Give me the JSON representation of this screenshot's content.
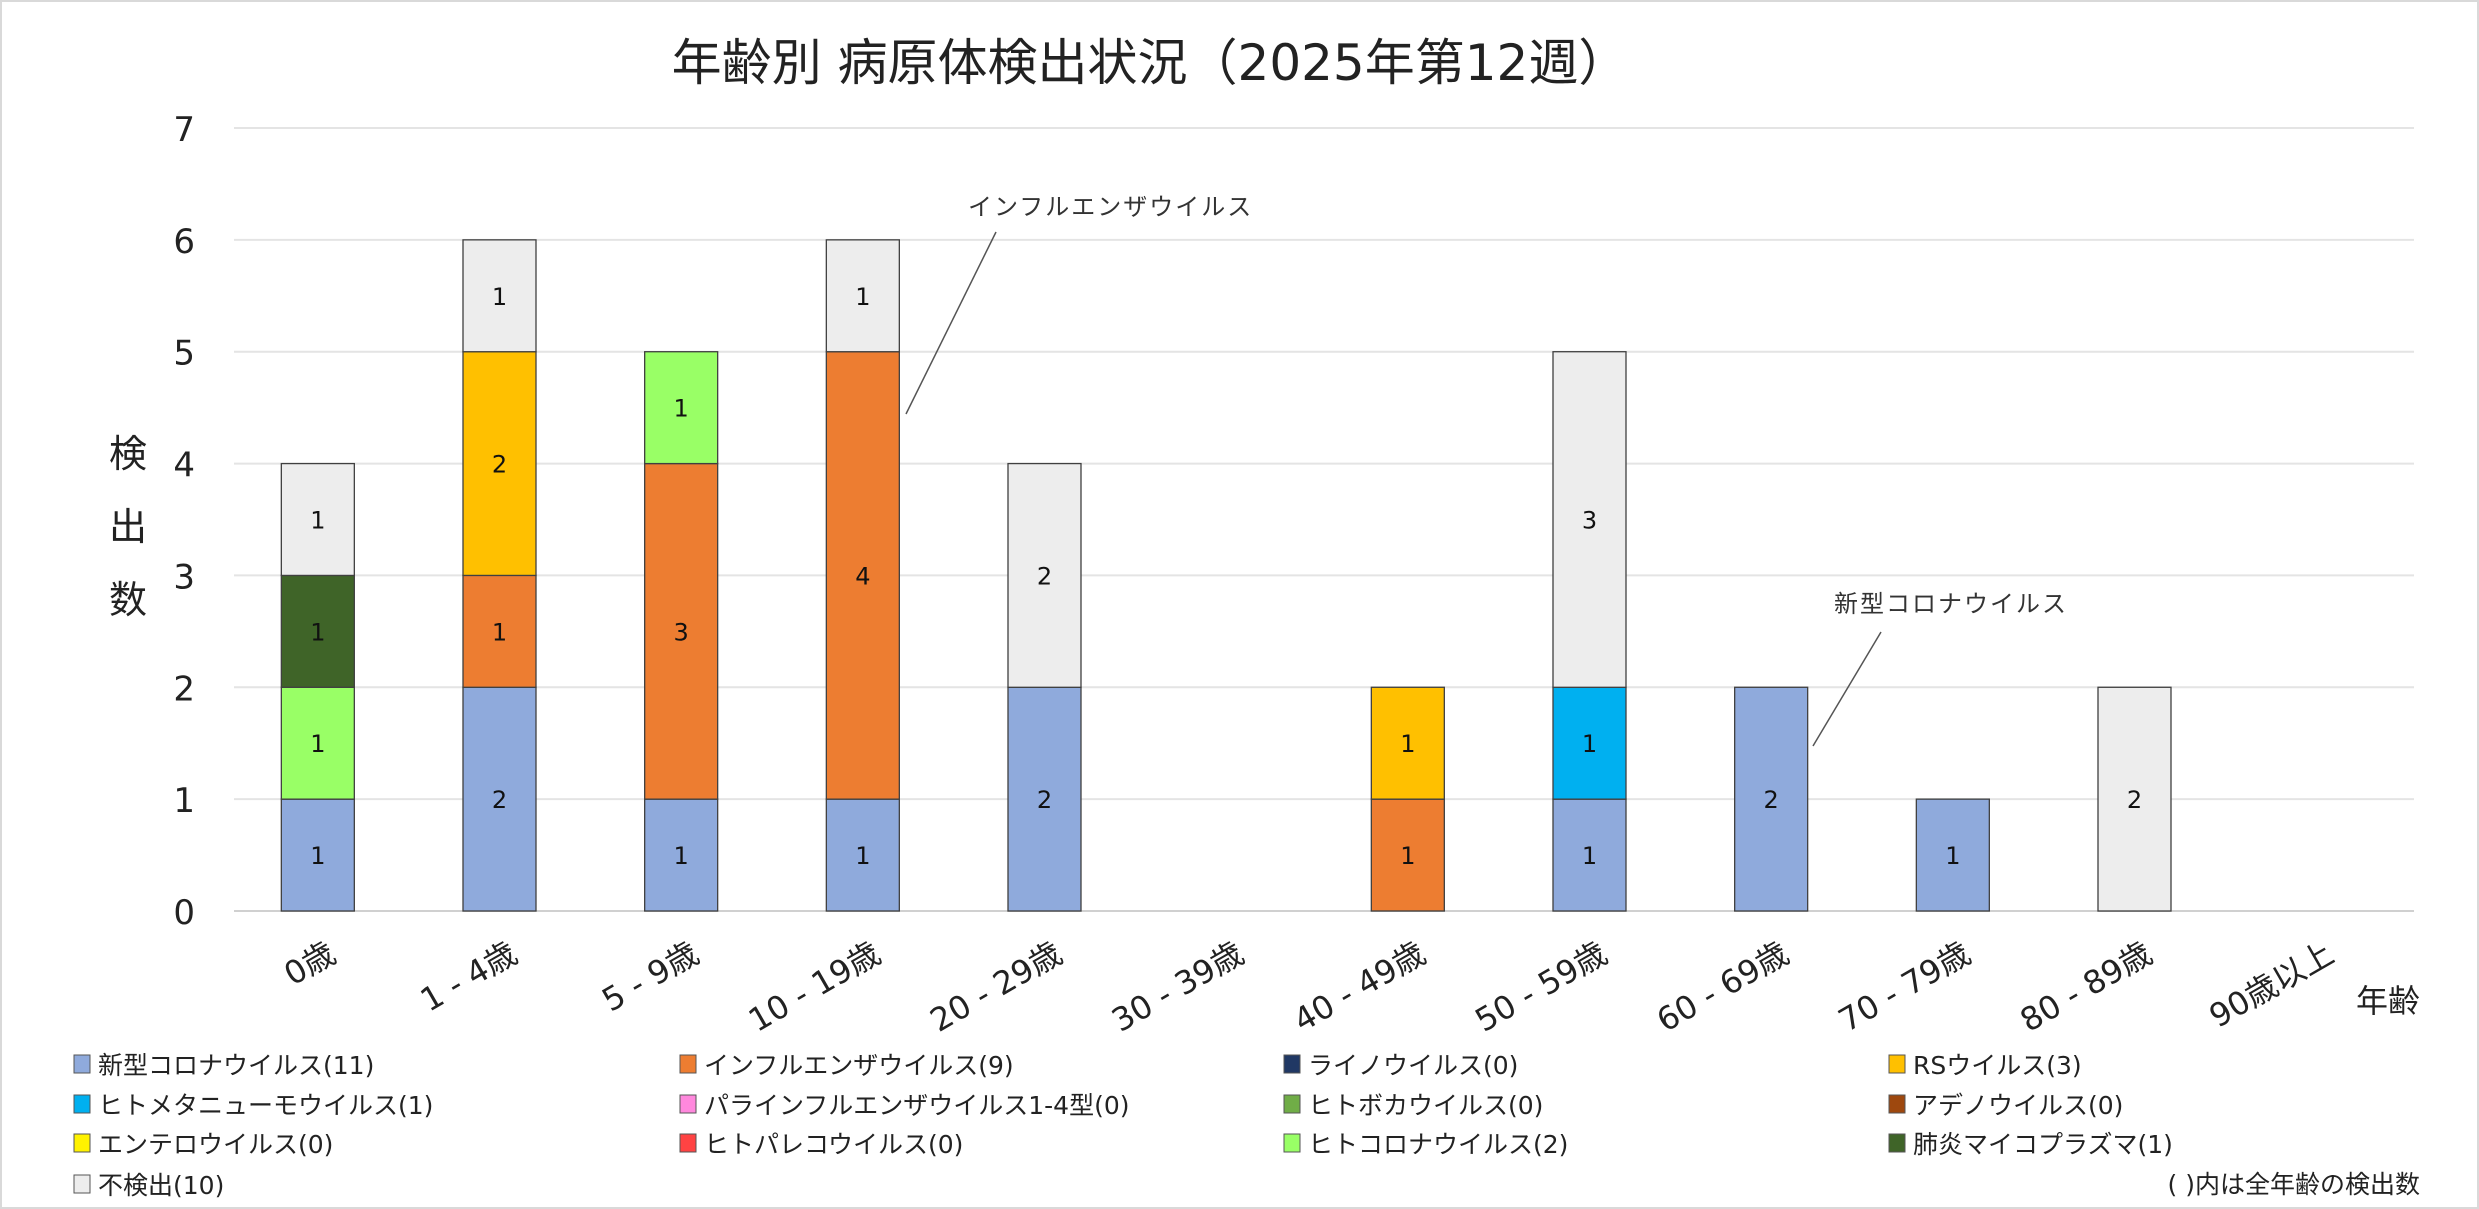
{
  "chart_data": {
    "type": "bar",
    "stacked": true,
    "title": "年齢別 病原体検出状況（2025年第12週）",
    "xlabel": "年齢",
    "ylabel": "検出数",
    "ylim": [
      0,
      7
    ],
    "yticks": [
      "0",
      "1",
      "2",
      "3",
      "4",
      "5",
      "6",
      "7"
    ],
    "grid": true,
    "legend_position": "bottom",
    "legend_note": "( )内は全年齢の検出数",
    "categories": [
      "0歳",
      "1 - 4歳",
      "5 - 9歳",
      "10 - 19歳",
      "20 - 29歳",
      "30 - 39歳",
      "40 - 49歳",
      "50 - 59歳",
      "60 - 69歳",
      "70 - 79歳",
      "80 - 89歳",
      "90歳以上"
    ],
    "series": [
      {
        "name": "新型コロナウイルス(11)",
        "color": "#8FAADC",
        "values": [
          1,
          2,
          1,
          1,
          2,
          0,
          0,
          1,
          2,
          1,
          0,
          0
        ]
      },
      {
        "name": "インフルエンザウイルス(9)",
        "color": "#ED7D31",
        "values": [
          0,
          1,
          3,
          4,
          0,
          0,
          1,
          0,
          0,
          0,
          0,
          0
        ]
      },
      {
        "name": "ライノウイルス(0)",
        "color": "#203864",
        "values": [
          0,
          0,
          0,
          0,
          0,
          0,
          0,
          0,
          0,
          0,
          0,
          0
        ]
      },
      {
        "name": "RSウイルス(3)",
        "color": "#FFC000",
        "values": [
          0,
          2,
          0,
          0,
          0,
          0,
          1,
          0,
          0,
          0,
          0,
          0
        ]
      },
      {
        "name": "ヒトメタニューモウイルス(1)",
        "color": "#00B0F0",
        "values": [
          0,
          0,
          0,
          0,
          0,
          0,
          0,
          1,
          0,
          0,
          0,
          0
        ]
      },
      {
        "name": "パラインフルエンザウイルス1-4型(0)",
        "color": "#FF88DD",
        "values": [
          0,
          0,
          0,
          0,
          0,
          0,
          0,
          0,
          0,
          0,
          0,
          0
        ]
      },
      {
        "name": "ヒトボカウイルス(0)",
        "color": "#70AD47",
        "values": [
          0,
          0,
          0,
          0,
          0,
          0,
          0,
          0,
          0,
          0,
          0,
          0
        ]
      },
      {
        "name": "アデノウイルス(0)",
        "color": "#9E480E",
        "values": [
          0,
          0,
          0,
          0,
          0,
          0,
          0,
          0,
          0,
          0,
          0,
          0
        ]
      },
      {
        "name": "エンテロウイルス(0)",
        "color": "#FFF200",
        "values": [
          0,
          0,
          0,
          0,
          0,
          0,
          0,
          0,
          0,
          0,
          0,
          0
        ]
      },
      {
        "name": "ヒトパレコウイルス(0)",
        "color": "#FF4343",
        "values": [
          0,
          0,
          0,
          0,
          0,
          0,
          0,
          0,
          0,
          0,
          0,
          0
        ]
      },
      {
        "name": "ヒトコロナウイルス(2)",
        "color": "#99FF66",
        "values": [
          1,
          0,
          1,
          0,
          0,
          0,
          0,
          0,
          0,
          0,
          0,
          0
        ]
      },
      {
        "name": "肺炎マイコプラズマ(1)",
        "color": "#3F6428",
        "values": [
          1,
          0,
          0,
          0,
          0,
          0,
          0,
          0,
          0,
          0,
          0,
          0
        ]
      },
      {
        "name": "不検出(10)",
        "color": "#EDEDED",
        "values": [
          1,
          1,
          0,
          1,
          2,
          0,
          0,
          3,
          0,
          0,
          2,
          0
        ]
      }
    ],
    "legend_order": [
      0,
      1,
      2,
      3,
      4,
      5,
      6,
      7,
      8,
      10,
      11,
      12,
      9,
      12
    ],
    "annotations": [
      {
        "text": "インフルエンザウイルス",
        "series": 1,
        "category": "10 - 19歳"
      },
      {
        "text": "新型コロナウイルス",
        "series": 0,
        "category": "60 - 69歳"
      }
    ]
  }
}
